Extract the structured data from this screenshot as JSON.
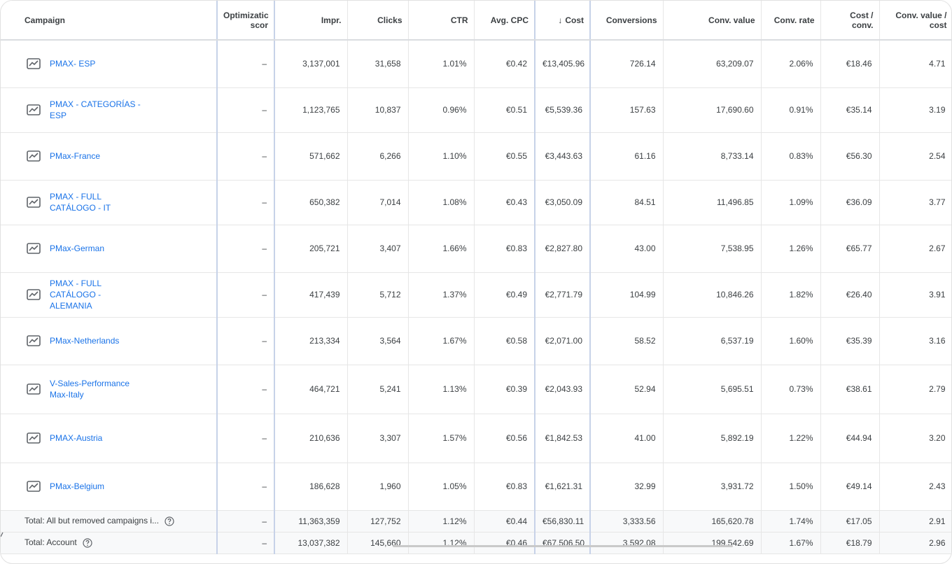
{
  "columns": {
    "campaign": "Campaign",
    "optimization": "Optimizatic\nscor",
    "impr": "Impr.",
    "clicks": "Clicks",
    "ctr": "CTR",
    "avg_cpc": "Avg. CPC",
    "cost": "Cost",
    "conversions": "Conversions",
    "conv_value": "Conv. value",
    "conv_rate": "Conv. rate",
    "cost_conv": "Cost /\nconv.",
    "conv_value_cost": "Conv. value\n/ cost"
  },
  "sort_indicator": "↓",
  "rows": [
    {
      "campaign": "PMAX- ESP",
      "opt": "–",
      "impr": "3,137,001",
      "clicks": "31,658",
      "ctr": "1.01%",
      "avg_cpc": "€0.42",
      "cost": "€13,405.96",
      "conversions": "726.14",
      "conv_value": "63,209.07",
      "conv_rate": "2.06%",
      "cost_conv": "€18.46",
      "conv_value_cost": "4.71"
    },
    {
      "campaign": "PMAX - CATEGORÍAS - ESP",
      "opt": "–",
      "impr": "1,123,765",
      "clicks": "10,837",
      "ctr": "0.96%",
      "avg_cpc": "€0.51",
      "cost": "€5,539.36",
      "conversions": "157.63",
      "conv_value": "17,690.60",
      "conv_rate": "0.91%",
      "cost_conv": "€35.14",
      "conv_value_cost": "3.19"
    },
    {
      "campaign": "PMax-France",
      "opt": "–",
      "impr": "571,662",
      "clicks": "6,266",
      "ctr": "1.10%",
      "avg_cpc": "€0.55",
      "cost": "€3,443.63",
      "conversions": "61.16",
      "conv_value": "8,733.14",
      "conv_rate": "0.83%",
      "cost_conv": "€56.30",
      "conv_value_cost": "2.54"
    },
    {
      "campaign": "PMAX - FULL CATÁLOGO - IT",
      "opt": "–",
      "impr": "650,382",
      "clicks": "7,014",
      "ctr": "1.08%",
      "avg_cpc": "€0.43",
      "cost": "€3,050.09",
      "conversions": "84.51",
      "conv_value": "11,496.85",
      "conv_rate": "1.09%",
      "cost_conv": "€36.09",
      "conv_value_cost": "3.77"
    },
    {
      "campaign": "PMax-German",
      "opt": "–",
      "impr": "205,721",
      "clicks": "3,407",
      "ctr": "1.66%",
      "avg_cpc": "€0.83",
      "cost": "€2,827.80",
      "conversions": "43.00",
      "conv_value": "7,538.95",
      "conv_rate": "1.26%",
      "cost_conv": "€65.77",
      "conv_value_cost": "2.67"
    },
    {
      "campaign": "PMAX - FULL CATÁLOGO - ALEMANIA",
      "opt": "–",
      "impr": "417,439",
      "clicks": "5,712",
      "ctr": "1.37%",
      "avg_cpc": "€0.49",
      "cost": "€2,771.79",
      "conversions": "104.99",
      "conv_value": "10,846.26",
      "conv_rate": "1.82%",
      "cost_conv": "€26.40",
      "conv_value_cost": "3.91"
    },
    {
      "campaign": "PMax-Netherlands",
      "opt": "–",
      "impr": "213,334",
      "clicks": "3,564",
      "ctr": "1.67%",
      "avg_cpc": "€0.58",
      "cost": "€2,071.00",
      "conversions": "58.52",
      "conv_value": "6,537.19",
      "conv_rate": "1.60%",
      "cost_conv": "€35.39",
      "conv_value_cost": "3.16"
    },
    {
      "campaign": "V-Sales-Performance Max-Italy",
      "opt": "–",
      "impr": "464,721",
      "clicks": "5,241",
      "ctr": "1.13%",
      "avg_cpc": "€0.39",
      "cost": "€2,043.93",
      "conversions": "52.94",
      "conv_value": "5,695.51",
      "conv_rate": "0.73%",
      "cost_conv": "€38.61",
      "conv_value_cost": "2.79"
    },
    {
      "campaign": "PMAX-Austria",
      "opt": "–",
      "impr": "210,636",
      "clicks": "3,307",
      "ctr": "1.57%",
      "avg_cpc": "€0.56",
      "cost": "€1,842.53",
      "conversions": "41.00",
      "conv_value": "5,892.19",
      "conv_rate": "1.22%",
      "cost_conv": "€44.94",
      "conv_value_cost": "3.20"
    },
    {
      "campaign": "PMax-Belgium",
      "opt": "–",
      "impr": "186,628",
      "clicks": "1,960",
      "ctr": "1.05%",
      "avg_cpc": "€0.83",
      "cost": "€1,621.31",
      "conversions": "32.99",
      "conv_value": "3,931.72",
      "conv_rate": "1.50%",
      "cost_conv": "€49.14",
      "conv_value_cost": "2.43"
    }
  ],
  "totals": [
    {
      "label": "Total: All but removed campaigns i...",
      "opt": "–",
      "impr": "11,363,359",
      "clicks": "127,752",
      "ctr": "1.12%",
      "avg_cpc": "€0.44",
      "cost": "€56,830.11",
      "conversions": "3,333.56",
      "conv_value": "165,620.78",
      "conv_rate": "1.74%",
      "cost_conv": "€17.05",
      "conv_value_cost": "2.91"
    },
    {
      "label": "Total: Account",
      "opt": "–",
      "impr": "13,037,382",
      "clicks": "145,660",
      "ctr": "1.12%",
      "avg_cpc": "€0.46",
      "cost": "€67,506.50",
      "conversions": "3,592.08",
      "conv_value": "199,542.69",
      "conv_rate": "1.67%",
      "cost_conv": "€18.79",
      "conv_value_cost": "2.96"
    }
  ],
  "icons": {
    "campaign": "performance-max-campaign-icon",
    "help": "help-circle-icon"
  },
  "colors": {
    "link": "#1a73e8",
    "header_highlight_border": "#c7d2e8",
    "totals_background": "#f8f9fa"
  }
}
